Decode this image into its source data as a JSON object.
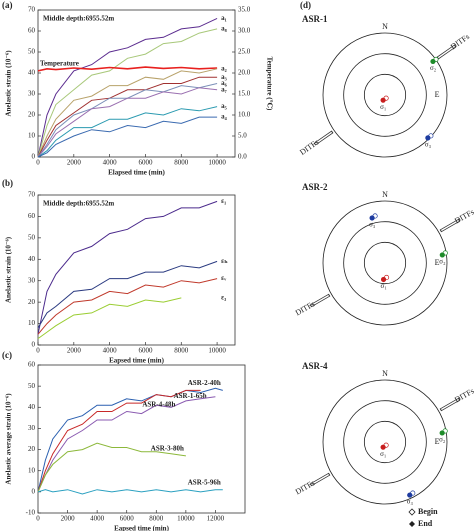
{
  "chart_data": [
    {
      "type": "line",
      "panel": "(a)",
      "annotation": "Middle depth:6955.52m",
      "xlabel": "Elapsed time (min)",
      "ylabel": "Anelastic strain (10⁻⁶)",
      "y2label": "Temperature (℃)",
      "x": [
        0,
        500,
        1000,
        2000,
        3000,
        4000,
        5000,
        6000,
        7000,
        8000,
        9000,
        10000
      ],
      "xlim": [
        0,
        11000
      ],
      "xticks": [
        0,
        2000,
        4000,
        6000,
        8000,
        10000
      ],
      "ylim": [
        0,
        70
      ],
      "yticks": [
        0,
        10,
        20,
        30,
        40,
        50,
        60,
        70
      ],
      "y2lim": [
        0,
        35
      ],
      "y2ticks": [
        {
          "value": 0,
          "label": "0.0"
        },
        {
          "value": 5,
          "label": "5.0"
        },
        {
          "value": 10,
          "label": "10.0"
        },
        {
          "value": 15,
          "label": "15.0"
        },
        {
          "value": 20,
          "label": "20.0"
        },
        {
          "value": 25,
          "label": "25.0"
        },
        {
          "value": 30,
          "label": "30.0"
        },
        {
          "value": 35,
          "label": "35.0"
        }
      ],
      "series": [
        {
          "name": "a₁",
          "color": "#5b2c8f",
          "values": [
            0,
            20,
            30,
            41,
            44,
            50,
            52,
            56,
            57,
            61,
            62,
            66
          ]
        },
        {
          "name": "a₈",
          "color": "#a8c87a",
          "values": [
            0,
            15,
            25,
            32,
            39,
            41,
            47,
            49,
            54,
            55,
            59,
            61
          ]
        },
        {
          "name": "Temperature",
          "color": "#e8201e",
          "axis": "y2",
          "values": [
            20.5,
            21,
            20.8,
            21.2,
            20.9,
            21.3,
            21,
            21.4,
            21.1,
            21.3,
            21,
            21.2
          ]
        },
        {
          "name": "a₂",
          "color": "#b8a26a",
          "values": [
            0,
            10,
            18,
            27,
            29,
            34,
            34,
            38,
            37,
            41,
            40,
            42
          ]
        },
        {
          "name": "a₃",
          "color": "#a03030",
          "values": [
            0,
            8,
            15,
            21,
            27,
            28,
            32,
            32,
            35,
            35,
            38,
            38
          ]
        },
        {
          "name": "a₆",
          "color": "#7b8fb8",
          "values": [
            0,
            6,
            13,
            20,
            23,
            28,
            28,
            32,
            31,
            34,
            33,
            35
          ]
        },
        {
          "name": "a₇",
          "color": "#9a6fb0",
          "values": [
            0,
            5,
            11,
            17,
            23,
            24,
            28,
            28,
            31,
            30,
            33,
            32
          ]
        },
        {
          "name": "a₅",
          "color": "#2a9ab0",
          "values": [
            0,
            3,
            8,
            14,
            14,
            18,
            18,
            21,
            20,
            23,
            22,
            24
          ]
        },
        {
          "name": "a₄",
          "color": "#3a6ab0",
          "values": [
            0,
            2,
            6,
            10,
            13,
            12,
            15,
            14,
            17,
            16,
            19,
            19
          ]
        }
      ]
    },
    {
      "type": "line",
      "panel": "(b)",
      "annotation": "Middle depth:6955.52m",
      "xlabel": "Eapsed time (min)",
      "ylabel": "Anelastic strain (10⁻⁶)",
      "x": [
        0,
        500,
        1000,
        2000,
        3000,
        4000,
        5000,
        6000,
        7000,
        8000,
        9000,
        10000
      ],
      "xlim": [
        0,
        11000
      ],
      "xticks": [
        0,
        2000,
        4000,
        6000,
        8000,
        10000
      ],
      "ylim": [
        0,
        70
      ],
      "yticks": [
        0,
        10,
        20,
        30,
        40,
        50,
        60,
        70
      ],
      "series": [
        {
          "name": "ε₁",
          "color": "#4b2a8c",
          "values": [
            5,
            25,
            33,
            43,
            46,
            52,
            54,
            59,
            60,
            64,
            64,
            67
          ]
        },
        {
          "name": "εₕ",
          "color": "#2a3a80",
          "values": [
            8,
            15,
            18,
            25,
            26,
            31,
            31,
            34,
            34,
            37,
            36,
            39
          ]
        },
        {
          "name": "εᵥ",
          "color": "#c0392b",
          "values": [
            5,
            10,
            14,
            20,
            21,
            25,
            24,
            28,
            27,
            30,
            29,
            31
          ]
        },
        {
          "name": "ε₃",
          "color": "#9acd32",
          "values": [
            3,
            6,
            9,
            14,
            15,
            19,
            18,
            21,
            20,
            22,
            null,
            null
          ]
        }
      ]
    },
    {
      "type": "line",
      "panel": "(c)",
      "xlabel": "Eapsed time (min)",
      "ylabel": "Anelastic average strain (10⁻⁶)",
      "x": [
        0,
        500,
        1000,
        2000,
        3000,
        4000,
        5000,
        6000,
        7000,
        8000,
        9000,
        10000,
        11000,
        12000,
        12500
      ],
      "xlim": [
        0,
        14000
      ],
      "xticks": [
        0,
        2000,
        4000,
        6000,
        8000,
        10000,
        12000
      ],
      "ylim": [
        -10,
        60
      ],
      "yticks": [
        -10,
        0,
        10,
        20,
        30,
        40,
        50,
        60
      ],
      "series": [
        {
          "name": "ASR-2-40h",
          "color": "#2a5fb0",
          "values": [
            0,
            15,
            25,
            34,
            36,
            41,
            41,
            44,
            43,
            46,
            45,
            48,
            47,
            49,
            48
          ]
        },
        {
          "name": "ASR-1-65h",
          "color": "#c82828",
          "values": [
            0,
            10,
            18,
            29,
            32,
            38,
            38,
            42,
            42,
            46,
            45,
            48,
            48,
            null,
            null
          ]
        },
        {
          "name": "ASR-4-48h",
          "color": "#8a5ab0",
          "values": [
            0,
            8,
            15,
            25,
            29,
            34,
            34,
            38,
            37,
            41,
            40,
            43,
            44,
            45,
            null
          ]
        },
        {
          "name": "ASR-3-80h",
          "color": "#8cb83a",
          "values": [
            0,
            8,
            13,
            19,
            20,
            23,
            21,
            21,
            19,
            19,
            18,
            17,
            null,
            null,
            null
          ]
        },
        {
          "name": "ASR-5-96h",
          "color": "#2aa0c0",
          "values": [
            0,
            1,
            0,
            1,
            -1,
            1,
            0,
            1,
            0,
            1,
            0,
            1,
            0,
            1,
            1
          ]
        }
      ]
    }
  ],
  "stereo_panel": "(d)",
  "stereonets": [
    {
      "title": "ASR-1",
      "north": "N",
      "east": "E",
      "ditfs": [
        "DITFs",
        "DITFs"
      ],
      "ditf_azimuth": 55,
      "points": [
        {
          "label": "σ₁",
          "color": "#c81e1e",
          "trend": 200,
          "plunge": 82
        },
        {
          "label": "σ₂",
          "color": "#1e8c2a",
          "trend": 55,
          "plunge": 5
        },
        {
          "label": "σ₃",
          "color": "#1e3ca0",
          "trend": 135,
          "plunge": 2
        }
      ]
    },
    {
      "title": "ASR-2",
      "north": "N",
      "east": "E",
      "ditfs": [
        "DITFs",
        "DITFs"
      ],
      "ditf_azimuth": 60,
      "points": [
        {
          "label": "σ₁",
          "color": "#c81e1e",
          "trend": 185,
          "plunge": 66
        },
        {
          "label": "σ₂",
          "color": "#1e8c2a",
          "trend": 82,
          "plunge": 6
        },
        {
          "label": "σ₃",
          "color": "#1e3ca0",
          "trend": 344,
          "plunge": 22
        }
      ]
    },
    {
      "title": "ASR-4",
      "north": "N",
      "east": "E",
      "ditfs": [
        "DITFs",
        "DITFs"
      ],
      "ditf_azimuth": 60,
      "points": [
        {
          "label": "σ₁",
          "color": "#c81e1e",
          "trend": 200,
          "plunge": 82
        },
        {
          "label": "σ₂",
          "color": "#1e8c2a",
          "trend": 81,
          "plunge": 6
        },
        {
          "label": "σ₃",
          "color": "#1e3ca0",
          "trend": 155,
          "plunge": 5
        }
      ]
    }
  ],
  "stereo_legend": [
    "Begin",
    "End"
  ]
}
